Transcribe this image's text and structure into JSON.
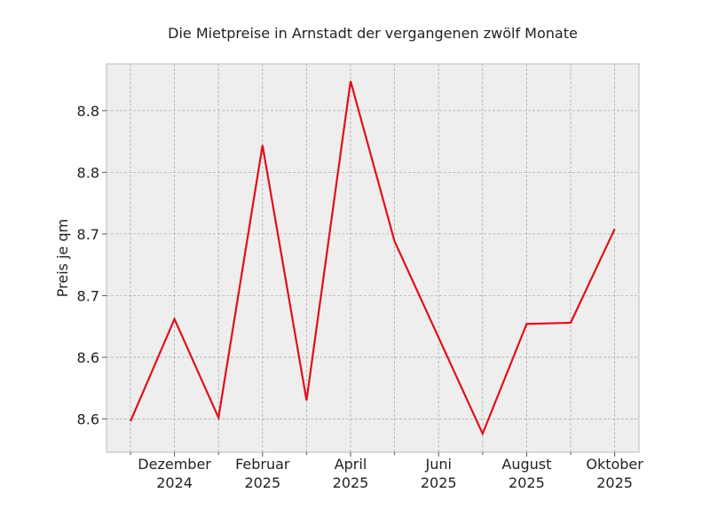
{
  "chart_data": {
    "type": "line",
    "title": "Die Mietpreise in Arnstadt der vergangenen zwölf Monate",
    "y_label": "Preis je qm",
    "categories": [
      null,
      [
        "Dezember",
        "2024"
      ],
      null,
      [
        "Februar",
        "2025"
      ],
      null,
      [
        "April",
        "2025"
      ],
      null,
      [
        "Juni",
        "2025"
      ],
      null,
      [
        "August",
        "2025"
      ],
      null,
      [
        "Oktober",
        "2025"
      ]
    ],
    "series": [
      {
        "color": "#e0101a",
        "values": [
          8.548,
          8.631,
          8.551,
          8.772,
          8.565,
          8.824,
          8.694,
          8.616,
          8.538,
          8.627,
          8.628,
          8.704
        ]
      }
    ],
    "ylim": [
      8.523,
      8.838
    ],
    "yticks": [
      {
        "value": 8.55,
        "label": "8.6"
      },
      {
        "value": 8.6,
        "label": "8.6"
      },
      {
        "value": 8.65,
        "label": "8.7"
      },
      {
        "value": 8.7,
        "label": "8.7"
      },
      {
        "value": 8.75,
        "label": "8.8"
      },
      {
        "value": 8.8,
        "label": "8.8"
      }
    ],
    "grid": true
  }
}
